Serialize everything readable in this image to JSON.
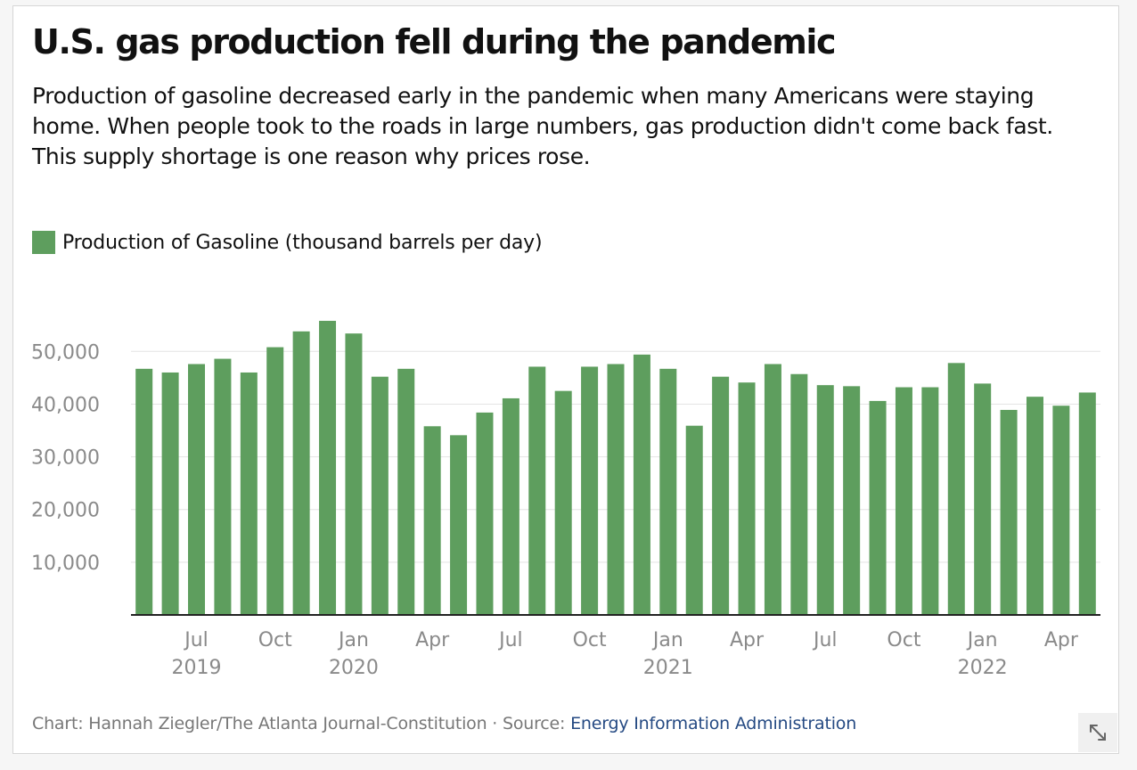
{
  "title": "U.S. gas production fell during the pandemic",
  "subtitle": "Production of gasoline decreased early in the pandemic when many Americans were staying home. When people took to the roads in large numbers, gas production didn't come back fast. This supply shortage is one reason why prices rose.",
  "footer": {
    "credit": "Chart: Hannah Ziegler/The Atlanta Journal-Constitution",
    "separator": " · ",
    "source_prefix": "Source: ",
    "source_link": "Energy Information Administration"
  },
  "expand_icon": "expand-arrows-icon",
  "colors": {
    "bar": "#5e9e5e",
    "tick_label": "#8a8a8a",
    "grid": "#e4e4e4",
    "axis": "#222222"
  },
  "chart_data": {
    "type": "bar",
    "x": [
      "2019-05",
      "2019-06",
      "2019-07",
      "2019-08",
      "2019-09",
      "2019-10",
      "2019-11",
      "2019-12",
      "2020-01",
      "2020-02",
      "2020-03",
      "2020-04",
      "2020-05",
      "2020-06",
      "2020-07",
      "2020-08",
      "2020-09",
      "2020-10",
      "2020-11",
      "2020-12",
      "2021-01",
      "2021-02",
      "2021-03",
      "2021-04",
      "2021-05",
      "2021-06",
      "2021-07",
      "2021-08",
      "2021-09",
      "2021-10",
      "2021-11",
      "2021-12",
      "2022-01",
      "2022-02",
      "2022-03",
      "2022-04",
      "2022-05"
    ],
    "series": [
      {
        "name": "Production of Gasoline (thousand barrels per day)",
        "values": [
          46700,
          46000,
          47600,
          48600,
          46000,
          50800,
          53800,
          55800,
          53400,
          45200,
          46700,
          35800,
          34100,
          38400,
          41100,
          47100,
          42500,
          47100,
          47600,
          49400,
          46700,
          35900,
          45200,
          44100,
          47600,
          45700,
          43600,
          43400,
          40600,
          43200,
          43200,
          47800,
          43900,
          38900,
          41400,
          39700,
          42200
        ]
      }
    ],
    "ylim": [
      0,
      58000
    ],
    "yticks": [
      10000,
      20000,
      30000,
      40000,
      50000
    ],
    "ytick_labels": [
      "10,000",
      "20,000",
      "30,000",
      "40,000",
      "50,000"
    ],
    "xtick_labels": [
      {
        "month": "Jul",
        "year": "2019",
        "index": 2
      },
      {
        "month": "Oct",
        "year": "",
        "index": 5
      },
      {
        "month": "Jan",
        "year": "2020",
        "index": 8
      },
      {
        "month": "Apr",
        "year": "",
        "index": 11
      },
      {
        "month": "Jul",
        "year": "",
        "index": 14
      },
      {
        "month": "Oct",
        "year": "",
        "index": 17
      },
      {
        "month": "Jan",
        "year": "2021",
        "index": 20
      },
      {
        "month": "Apr",
        "year": "",
        "index": 23
      },
      {
        "month": "Jul",
        "year": "",
        "index": 26
      },
      {
        "month": "Oct",
        "year": "",
        "index": 29
      },
      {
        "month": "Jan",
        "year": "2022",
        "index": 32
      },
      {
        "month": "Apr",
        "year": "",
        "index": 35
      }
    ],
    "grid": true,
    "legend": "top-left"
  }
}
